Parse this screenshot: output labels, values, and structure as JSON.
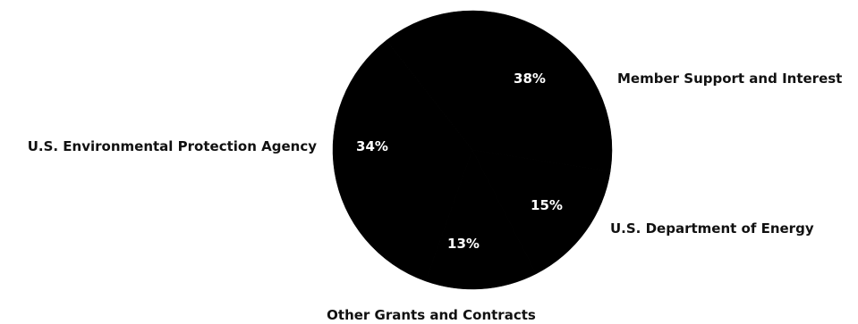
{
  "chart_data": {
    "type": "pie",
    "categories": [
      "Member Support and Interest",
      "U.S. Department of Energy",
      "Other Grants and Contracts",
      "U.S. Environmental Protection Agency"
    ],
    "values": [
      38,
      15,
      13,
      34
    ],
    "value_labels": [
      "38%",
      "15%",
      "13%",
      "34%"
    ],
    "slice_color": "#000000",
    "value_label_color": "#ffffff",
    "category_label_color": "#111111"
  }
}
